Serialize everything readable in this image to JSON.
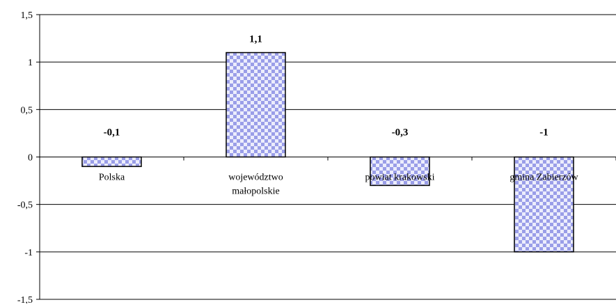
{
  "chart_data": {
    "type": "bar",
    "categories": [
      [
        "Polska"
      ],
      [
        "województwo",
        "małopolskie"
      ],
      [
        "powiat krakowski"
      ],
      [
        "gmina Zabierzów"
      ]
    ],
    "values": [
      -0.1,
      1.1,
      -0.3,
      -1
    ],
    "data_labels": [
      "-0,1",
      "1,1",
      "-0,3",
      "-1"
    ],
    "y_ticks": [
      {
        "value": 1.5,
        "label": "1,5"
      },
      {
        "value": 1,
        "label": "1"
      },
      {
        "value": 0.5,
        "label": "0,5"
      },
      {
        "value": 0,
        "label": "0"
      },
      {
        "value": -0.5,
        "label": "-0,5"
      },
      {
        "value": -1,
        "label": "-1"
      },
      {
        "value": -1.5,
        "label": "-1,5"
      }
    ],
    "ylim": [
      -1.5,
      1.5
    ],
    "grid": true,
    "bar_pattern": "checkered",
    "colors": {
      "bar_light": "#ecedfc",
      "bar_dark": "#9a9ee8",
      "bar_border": "#000000",
      "grid": "#000000"
    }
  }
}
